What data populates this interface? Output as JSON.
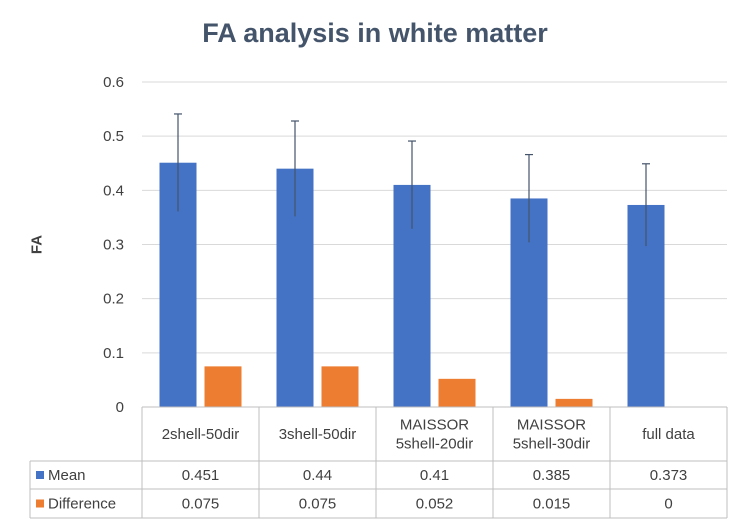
{
  "chart_data": {
    "type": "bar",
    "title": "FA analysis in white matter",
    "ylabel": "FA",
    "xlabel": "",
    "ylim": [
      0,
      0.6
    ],
    "yticks": [
      "0",
      "0.1",
      "0.2",
      "0.3",
      "0.4",
      "0.5",
      "0.6"
    ],
    "ytick_values": [
      0,
      0.1,
      0.2,
      0.3,
      0.4,
      0.5,
      0.6
    ],
    "grid": true,
    "legend_placement": "data-table",
    "categories": [
      [
        "2shell-50dir"
      ],
      [
        "3shell-50dir"
      ],
      [
        "MAISSOR",
        "5shell-20dir"
      ],
      [
        "MAISSOR",
        "5shell-30dir"
      ],
      [
        "full data"
      ]
    ],
    "series": [
      {
        "name": "Mean",
        "color": "#4472C4",
        "values": [
          0.451,
          0.44,
          0.41,
          0.385,
          0.373
        ],
        "value_labels": [
          "0.451",
          "0.44",
          "0.41",
          "0.385",
          "0.373"
        ],
        "error_upper": [
          0.541,
          0.528,
          0.491,
          0.466,
          0.449
        ],
        "error_lower": [
          0.361,
          0.352,
          0.329,
          0.304,
          0.297
        ]
      },
      {
        "name": "Difference",
        "color": "#ED7D31",
        "values": [
          0.075,
          0.075,
          0.052,
          0.015,
          0
        ],
        "value_labels": [
          "0.075",
          "0.075",
          "0.052",
          "0.015",
          "0"
        ]
      }
    ]
  }
}
